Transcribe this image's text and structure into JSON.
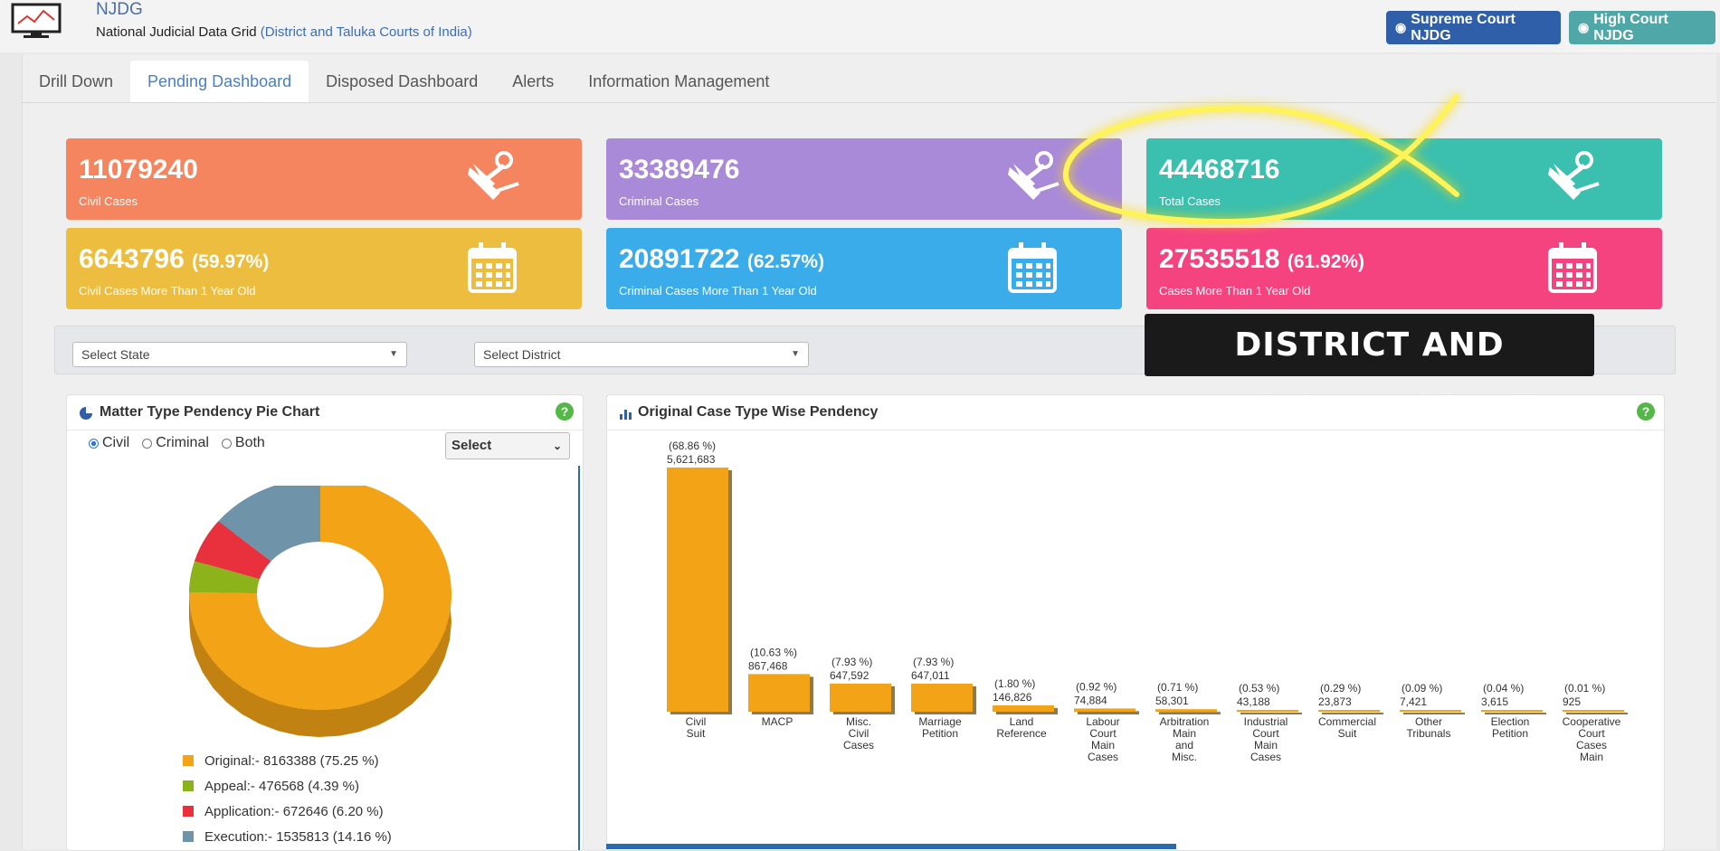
{
  "header": {
    "app_name": "NJDG",
    "subtitle": "National Judicial Data Grid",
    "subtitle_link": "(District and Taluka Courts of India)",
    "buttons": [
      {
        "label": "Supreme Court NJDG",
        "color": "#2f5fa8"
      },
      {
        "label": "High Court NJDG",
        "color": "#4fa7a8"
      }
    ]
  },
  "tabs": [
    {
      "label": "Drill Down"
    },
    {
      "label": "Pending Dashboard",
      "active": true
    },
    {
      "label": "Disposed Dashboard"
    },
    {
      "label": "Alerts"
    },
    {
      "label": "Information Management"
    }
  ],
  "cards": {
    "civil": {
      "value": "11079240",
      "label": "Civil Cases",
      "icon": "gavel-icon",
      "color": "#f4855f"
    },
    "criminal": {
      "value": "33389476",
      "label": "Criminal Cases",
      "icon": "gavel-icon",
      "color": "#a98ad9"
    },
    "total": {
      "value": "44468716",
      "label": "Total Cases",
      "icon": "gavel-icon",
      "color": "#3bbfae"
    },
    "civil_old": {
      "value": "6643796",
      "pct": "(59.97%)",
      "label": "Civil Cases More Than 1 Year Old",
      "icon": "calendar-icon",
      "color": "#ecbd3f"
    },
    "criminal_old": {
      "value": "20891722",
      "pct": "(62.57%)",
      "label": "Criminal Cases More Than 1 Year Old",
      "icon": "calendar-icon",
      "color": "#3aace9"
    },
    "total_old": {
      "value": "27535518",
      "pct": "(61.92%)",
      "label": "Cases More Than 1 Year Old",
      "icon": "calendar-icon",
      "color": "#f4437f"
    }
  },
  "filters": {
    "state_placeholder": "Select State",
    "district_placeholder": "Select District"
  },
  "overlay_label": "DISTRICT AND REGIONAL COURT",
  "pie_panel": {
    "title": "Matter Type Pendency Pie Chart",
    "help": "?",
    "radios": [
      {
        "label": "Civil",
        "checked": true
      },
      {
        "label": "Criminal",
        "checked": false
      },
      {
        "label": "Both",
        "checked": false
      }
    ],
    "select_value": "Select"
  },
  "bar_panel": {
    "title": "Original Case Type Wise Pendency",
    "help": "?"
  },
  "chart_data": [
    {
      "type": "pie",
      "title": "Matter Type Pendency Pie Chart",
      "slices": [
        {
          "name": "Original",
          "value": 8163388,
          "pct": 75.25,
          "color": "#f2a316",
          "legend": "Original:- 8163388 (75.25 %)"
        },
        {
          "name": "Appeal",
          "value": 476568,
          "pct": 4.39,
          "color": "#8db31a",
          "legend": "Appeal:- 476568 (4.39 %)"
        },
        {
          "name": "Application",
          "value": 672646,
          "pct": 6.2,
          "color": "#e8313d",
          "legend": "Application:- 672646 (6.20 %)"
        },
        {
          "name": "Execution",
          "value": 1535813,
          "pct": 14.16,
          "color": "#6f93a8",
          "legend": "Execution:- 1535813 (14.16 %)"
        }
      ]
    },
    {
      "type": "bar",
      "title": "Original Case Type Wise Pendency",
      "color": "#f2a316",
      "categories": [
        [
          "Civil",
          "Suit"
        ],
        [
          "MACP"
        ],
        [
          "Misc.",
          "Civil",
          "Cases"
        ],
        [
          "Marriage",
          "Petition"
        ],
        [
          "Land",
          "Reference"
        ],
        [
          "Labour",
          "Court",
          "Main",
          "Cases"
        ],
        [
          "Arbitration",
          "Main",
          "and",
          "Misc."
        ],
        [
          "Industrial",
          "Court",
          "Main",
          "Cases"
        ],
        [
          "Commercial",
          "Suit"
        ],
        [
          "Other",
          "Tribunals"
        ],
        [
          "Election",
          "Petition"
        ],
        [
          "Cooperative",
          "Court",
          "Cases",
          "Main"
        ]
      ],
      "values": [
        5621683,
        867468,
        647592,
        647011,
        146826,
        74884,
        58301,
        43188,
        23873,
        7421,
        3615,
        925
      ],
      "value_labels": [
        "5,621,683",
        "867,468",
        "647,592",
        "647,011",
        "146,826",
        "74,884",
        "58,301",
        "43,188",
        "23,873",
        "7,421",
        "3,615",
        "925"
      ],
      "pct_labels": [
        "(68.86 %)",
        "(10.63 %)",
        "(7.93 %)",
        "(7.93 %)",
        "(1.80 %)",
        "(0.92 %)",
        "(0.71 %)",
        "(0.53 %)",
        "(0.29 %)",
        "(0.09 %)",
        "(0.04 %)",
        "(0.01 %)"
      ]
    }
  ]
}
